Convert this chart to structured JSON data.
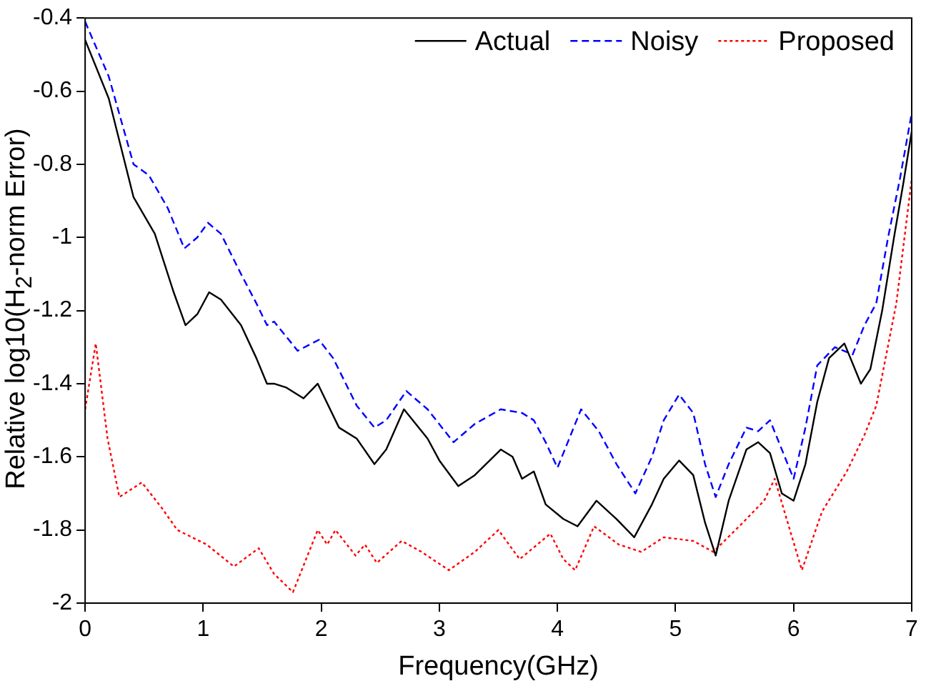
{
  "chart_data": {
    "type": "line",
    "xlabel": "Frequency(GHz)",
    "ylabel": "Relative log10(H$_{2}$-norm Error)",
    "xlim": [
      0,
      7
    ],
    "xticks": [
      0,
      1,
      2,
      3,
      4,
      5,
      6,
      7
    ],
    "ylim": [
      -2,
      -0.4
    ],
    "yticks": [
      -2,
      -1.8,
      -1.6,
      -1.4,
      -1.2,
      -1,
      -0.8,
      -0.6,
      -0.4
    ],
    "grid": false,
    "legend": "top right",
    "marker": "none",
    "series": [
      {
        "name": "Actual",
        "color": "#000000",
        "line_style": "solid",
        "x": [
          0,
          0.2,
          0.41,
          0.59,
          0.75,
          0.85,
          0.95,
          1.05,
          1.15,
          1.32,
          1.45,
          1.54,
          1.6,
          1.7,
          1.85,
          1.97,
          2.15,
          2.3,
          2.45,
          2.55,
          2.7,
          2.9,
          3.0,
          3.16,
          3.3,
          3.52,
          3.62,
          3.7,
          3.8,
          3.9,
          4.05,
          4.17,
          4.33,
          4.5,
          4.65,
          4.8,
          4.9,
          5.03,
          5.15,
          5.25,
          5.34,
          5.45,
          5.6,
          5.7,
          5.8,
          5.9,
          6.0,
          6.1,
          6.2,
          6.3,
          6.43,
          6.57,
          6.65,
          6.75,
          6.85,
          6.93,
          7.0
        ],
        "values": [
          -0.46,
          -0.62,
          -0.89,
          -0.99,
          -1.15,
          -1.24,
          -1.21,
          -1.15,
          -1.17,
          -1.24,
          -1.33,
          -1.4,
          -1.4,
          -1.41,
          -1.44,
          -1.4,
          -1.52,
          -1.55,
          -1.62,
          -1.58,
          -1.47,
          -1.55,
          -1.61,
          -1.68,
          -1.65,
          -1.58,
          -1.6,
          -1.66,
          -1.64,
          -1.73,
          -1.77,
          -1.79,
          -1.72,
          -1.77,
          -1.82,
          -1.73,
          -1.66,
          -1.61,
          -1.65,
          -1.78,
          -1.87,
          -1.72,
          -1.58,
          -1.56,
          -1.59,
          -1.7,
          -1.72,
          -1.62,
          -1.45,
          -1.33,
          -1.29,
          -1.4,
          -1.36,
          -1.2,
          -1.0,
          -0.85,
          -0.71
        ]
      },
      {
        "name": "Noisy",
        "color": "#0000ff",
        "line_style": "dashed",
        "x": [
          0,
          0.2,
          0.41,
          0.54,
          0.7,
          0.84,
          0.95,
          1.04,
          1.15,
          1.32,
          1.45,
          1.54,
          1.6,
          1.8,
          1.98,
          2.1,
          2.3,
          2.45,
          2.55,
          2.72,
          2.9,
          3.12,
          3.3,
          3.52,
          3.7,
          3.8,
          3.9,
          4.0,
          4.1,
          4.2,
          4.35,
          4.5,
          4.66,
          4.8,
          4.9,
          5.03,
          5.15,
          5.25,
          5.34,
          5.45,
          5.6,
          5.7,
          5.8,
          5.9,
          6.0,
          6.1,
          6.2,
          6.35,
          6.5,
          6.6,
          6.7,
          6.8,
          6.9,
          7.0
        ],
        "values": [
          -0.41,
          -0.56,
          -0.8,
          -0.83,
          -0.92,
          -1.03,
          -1.0,
          -0.96,
          -0.99,
          -1.1,
          -1.18,
          -1.24,
          -1.23,
          -1.31,
          -1.28,
          -1.33,
          -1.46,
          -1.52,
          -1.5,
          -1.42,
          -1.47,
          -1.56,
          -1.51,
          -1.47,
          -1.48,
          -1.5,
          -1.56,
          -1.63,
          -1.55,
          -1.47,
          -1.53,
          -1.62,
          -1.7,
          -1.6,
          -1.5,
          -1.43,
          -1.48,
          -1.62,
          -1.71,
          -1.62,
          -1.52,
          -1.53,
          -1.5,
          -1.58,
          -1.66,
          -1.52,
          -1.35,
          -1.3,
          -1.32,
          -1.24,
          -1.18,
          -1.0,
          -0.84,
          -0.66
        ]
      },
      {
        "name": "Proposed",
        "color": "#ff0000",
        "line_style": "dotted",
        "x": [
          0,
          0.09,
          0.19,
          0.29,
          0.48,
          0.65,
          0.78,
          1.03,
          1.26,
          1.47,
          1.6,
          1.76,
          1.97,
          2.05,
          2.12,
          2.29,
          2.37,
          2.47,
          2.68,
          2.85,
          3.08,
          3.3,
          3.5,
          3.68,
          3.94,
          4.05,
          4.15,
          4.31,
          4.52,
          4.71,
          4.9,
          5.15,
          5.32,
          5.57,
          5.75,
          5.84,
          5.95,
          6.07,
          6.24,
          6.45,
          6.6,
          6.7,
          6.87,
          7.0
        ],
        "values": [
          -1.47,
          -1.29,
          -1.55,
          -1.71,
          -1.67,
          -1.74,
          -1.8,
          -1.84,
          -1.9,
          -1.85,
          -1.92,
          -1.97,
          -1.8,
          -1.84,
          -1.8,
          -1.87,
          -1.84,
          -1.89,
          -1.83,
          -1.86,
          -1.91,
          -1.86,
          -1.8,
          -1.88,
          -1.81,
          -1.88,
          -1.91,
          -1.79,
          -1.84,
          -1.86,
          -1.82,
          -1.83,
          -1.86,
          -1.78,
          -1.72,
          -1.66,
          -1.78,
          -1.91,
          -1.75,
          -1.64,
          -1.54,
          -1.46,
          -1.18,
          -0.84
        ]
      }
    ]
  }
}
